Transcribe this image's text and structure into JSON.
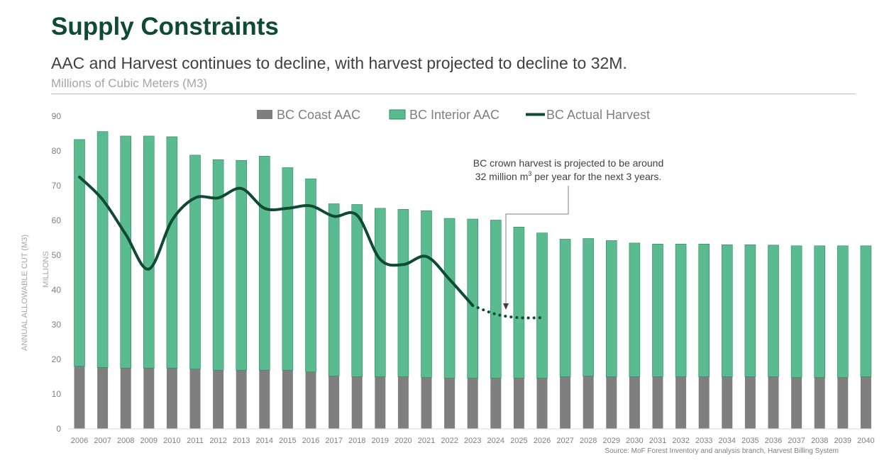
{
  "header": {
    "title": "Supply Constraints",
    "subtitle": "AAC and Harvest continues to decline, with harvest projected to decline to 32M.",
    "units": "Millions of Cubic Meters (M3)"
  },
  "footer": {
    "source": "Source: MoF Forest Inventory and analysis branch, Harvest Billing System"
  },
  "annotation": {
    "line1": "BC crown harvest is projected to be around",
    "line2_prefix": "32 million m",
    "line2_sup": "3",
    "line2_suffix": " per year for the next 3 years."
  },
  "colors": {
    "coast": "#7f7f7f",
    "interior": "#59bb8f",
    "interior_edge": "#2e8b5f",
    "harvest": "#0e4a34",
    "axis_text": "#7f7f7f"
  },
  "chart_data": {
    "type": "bar",
    "stacked": true,
    "categories": [
      "2006",
      "2007",
      "2008",
      "2009",
      "2010",
      "2011",
      "2012",
      "2013",
      "2014",
      "2015",
      "2016",
      "2017",
      "2018",
      "2019",
      "2020",
      "2021",
      "2022",
      "2023",
      "2024",
      "2025",
      "2026",
      "2027",
      "2028",
      "2029",
      "2030",
      "2031",
      "2032",
      "2033",
      "2034",
      "2035",
      "2036",
      "2037",
      "2038",
      "2039",
      "2040"
    ],
    "series": [
      {
        "name": "BC Coast AAC",
        "kind": "bar",
        "values": [
          18,
          17.7,
          17.5,
          17.5,
          17.5,
          17.2,
          16.9,
          16.9,
          16.9,
          16.9,
          16.4,
          15.2,
          15.0,
          15.0,
          15.0,
          14.8,
          14.6,
          14.6,
          14.6,
          14.6,
          14.6,
          15.0,
          15.2,
          15.0,
          15.0,
          15.0,
          15.0,
          15.0,
          15.0,
          15.0,
          15.0,
          14.8,
          14.8,
          14.8,
          15.0
        ]
      },
      {
        "name": "BC Interior AAC",
        "kind": "bar",
        "values": [
          65.3,
          67.9,
          66.8,
          66.8,
          66.6,
          61.6,
          60.6,
          60.4,
          61.6,
          58.3,
          55.6,
          49.6,
          49.6,
          48.5,
          48.2,
          48.0,
          46.0,
          45.8,
          45.5,
          43.5,
          41.8,
          39.6,
          39.6,
          39.2,
          38.5,
          38.2,
          38.2,
          38.2,
          38.0,
          38.0,
          37.9,
          37.9,
          37.9,
          37.9,
          37.7
        ]
      },
      {
        "name": "BC Actual Harvest",
        "kind": "line",
        "values": [
          72.5,
          66,
          56,
          46,
          60,
          66.5,
          66.5,
          69.2,
          63.5,
          63.5,
          64.2,
          61.2,
          61.5,
          48.8,
          47.3,
          49.6,
          43,
          35.5,
          null,
          null,
          null,
          null,
          null,
          null,
          null,
          null,
          null,
          null,
          null,
          null,
          null,
          null,
          null,
          null,
          null
        ]
      },
      {
        "name": "BC Actual Harvest (projected)",
        "kind": "line-dotted",
        "values": [
          null,
          null,
          null,
          null,
          null,
          null,
          null,
          null,
          null,
          null,
          null,
          null,
          null,
          null,
          null,
          null,
          null,
          35.5,
          33,
          32,
          32,
          null,
          null,
          null,
          null,
          null,
          null,
          null,
          null,
          null,
          null,
          null,
          null,
          null,
          null
        ]
      }
    ],
    "ylabel_outer": "ANNUAL ALLOWABLE CUT (M3)",
    "ylabel_inner": "MILLIONS",
    "ylim": [
      0,
      90
    ],
    "yticks": [
      0,
      10,
      20,
      30,
      40,
      50,
      60,
      70,
      80,
      90
    ],
    "grid": false,
    "legend": "top"
  }
}
